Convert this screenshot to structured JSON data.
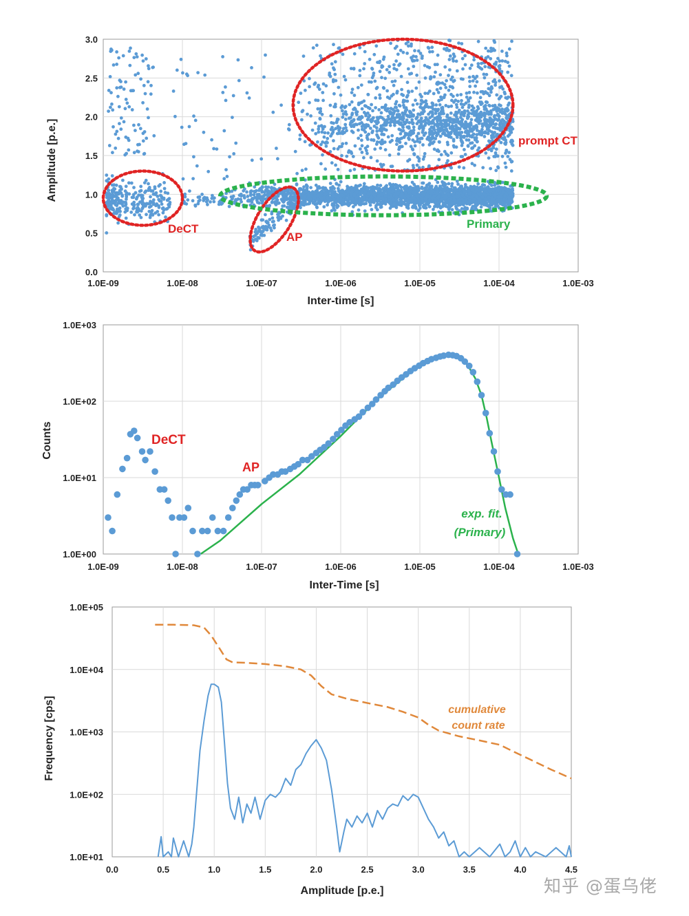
{
  "watermark": "知乎 @蛋乌佬",
  "colors": {
    "points": "#5b9bd5",
    "grid": "#d9d9d9",
    "red_annotation": "#e02424",
    "green": "#2bb24c",
    "orange": "#e0883a",
    "blue_line": "#5b9bd5"
  },
  "chart_data": [
    {
      "id": "scatter",
      "type": "scatter",
      "xlabel": "Inter-time [s]",
      "ylabel": "Amplitude [p.e.]",
      "x_scale": "log",
      "xlim": [
        1e-09,
        0.001
      ],
      "ylim": [
        0,
        3
      ],
      "x_tick_labels": [
        "1.0E-09",
        "1.0E-08",
        "1.0E-07",
        "1.0E-06",
        "1.0E-05",
        "1.0E-04",
        "1.0E-03"
      ],
      "y_tick_labels": [
        "0.0",
        "0.5",
        "1.0",
        "1.5",
        "2.0",
        "2.5",
        "3.0"
      ],
      "grid": true,
      "clusters": [
        {
          "label": "DeCT",
          "x_range": [
            1.1e-09,
            7e-09
          ],
          "y_center": 0.92,
          "y_spread": 0.12,
          "count": 280
        },
        {
          "label": "Primary",
          "x_range": [
            3e-08,
            0.00015
          ],
          "y_center": 0.97,
          "y_spread": 0.07,
          "count": 2600
        },
        {
          "label": "AP",
          "x_range": [
            7e-08,
            3.5e-07
          ],
          "y_center": 0.75,
          "y_spread": 0.2,
          "count": 110
        },
        {
          "label": "prompt CT",
          "x_range": [
            3e-07,
            0.00015
          ],
          "y_center": 1.9,
          "y_spread": 0.15,
          "count": 1500
        }
      ],
      "annotations": [
        {
          "text": "DeCT",
          "color": "red",
          "ellipse": {
            "x_range": [
              1e-09,
              1e-08
            ],
            "y_range": [
              0.6,
              1.3
            ]
          }
        },
        {
          "text": "AP",
          "color": "red",
          "ellipse": {
            "x_range": [
              6e-08,
              3.5e-07
            ],
            "y_range": [
              0.2,
              1.15
            ]
          }
        },
        {
          "text": "prompt CT",
          "color": "red",
          "ellipse": {
            "x_range": [
              2.5e-07,
              0.00015
            ],
            "y_range": [
              1.3,
              3.0
            ]
          }
        },
        {
          "text": "Primary",
          "color": "green",
          "ellipse": {
            "x_range": [
              3e-08,
              0.0004
            ],
            "y_range": [
              0.73,
              1.23
            ]
          }
        }
      ]
    },
    {
      "id": "histogram",
      "type": "scatter",
      "xlabel": "Inter-Time [s]",
      "ylabel": "Counts",
      "x_scale": "log",
      "y_scale": "log",
      "xlim": [
        1e-09,
        0.001
      ],
      "ylim": [
        1,
        1000
      ],
      "x_tick_labels": [
        "1.0E-09",
        "1.0E-08",
        "1.0E-07",
        "1.0E-06",
        "1.0E-05",
        "1.0E-04",
        "1.0E-03"
      ],
      "y_tick_labels": [
        "1.0E+00",
        "1.0E+01",
        "1.0E+02",
        "1.0E+03"
      ],
      "grid": true,
      "points": [
        [
          1.15e-09,
          3
        ],
        [
          1.3e-09,
          2
        ],
        [
          1.5e-09,
          6
        ],
        [
          1.75e-09,
          13
        ],
        [
          2e-09,
          18
        ],
        [
          2.2e-09,
          37
        ],
        [
          2.45e-09,
          41
        ],
        [
          2.7e-09,
          33
        ],
        [
          3.1e-09,
          22
        ],
        [
          3.4e-09,
          17
        ],
        [
          3.9e-09,
          22
        ],
        [
          4.5e-09,
          12
        ],
        [
          5.2e-09,
          7
        ],
        [
          5.9e-09,
          7
        ],
        [
          6.6e-09,
          5
        ],
        [
          7.4e-09,
          3
        ],
        [
          8.2e-09,
          1
        ],
        [
          9.2e-09,
          3
        ],
        [
          1.05e-08,
          3
        ],
        [
          1.18e-08,
          4
        ],
        [
          1.35e-08,
          2
        ],
        [
          1.55e-08,
          1
        ],
        [
          1.78e-08,
          2
        ],
        [
          2.08e-08,
          2
        ],
        [
          2.4e-08,
          3
        ],
        [
          2.8e-08,
          2
        ],
        [
          3.3e-08,
          2
        ],
        [
          3.8e-08,
          3
        ],
        [
          4.3e-08,
          4
        ],
        [
          4.8e-08,
          5
        ],
        [
          5.3e-08,
          6
        ],
        [
          5.9e-08,
          7
        ],
        [
          6.6e-08,
          7
        ],
        [
          7.4e-08,
          8
        ],
        [
          8.2e-08,
          8
        ],
        [
          9e-08,
          8
        ],
        [
          1.1e-07,
          9
        ],
        [
          1.25e-07,
          10
        ],
        [
          1.4e-07,
          11
        ],
        [
          1.6e-07,
          11
        ],
        [
          1.8e-07,
          12
        ],
        [
          2e-07,
          12
        ],
        [
          2.3e-07,
          13
        ],
        [
          2.6e-07,
          14
        ],
        [
          2.9e-07,
          15
        ],
        [
          3.3e-07,
          17
        ],
        [
          3.8e-07,
          17
        ],
        [
          4.3e-07,
          19
        ],
        [
          4.9e-07,
          21
        ],
        [
          5.5e-07,
          23
        ],
        [
          6.2e-07,
          25
        ],
        [
          7e-07,
          28
        ],
        [
          8e-07,
          32
        ],
        [
          9e-07,
          37
        ],
        [
          1.02e-06,
          42
        ],
        [
          1.15e-06,
          48
        ],
        [
          1.3e-06,
          53
        ],
        [
          1.5e-06,
          58
        ],
        [
          1.7e-06,
          63
        ],
        [
          1.9e-06,
          72
        ],
        [
          2.2e-06,
          82
        ],
        [
          2.5e-06,
          92
        ],
        [
          2.8e-06,
          105
        ],
        [
          3.2e-06,
          120
        ],
        [
          3.6e-06,
          135
        ],
        [
          4e-06,
          150
        ],
        [
          4.6e-06,
          165
        ],
        [
          5.2e-06,
          185
        ],
        [
          5.9e-06,
          205
        ],
        [
          6.7e-06,
          225
        ],
        [
          7.6e-06,
          248
        ],
        [
          8.6e-06,
          270
        ],
        [
          9.8e-06,
          292
        ],
        [
          1.1e-05,
          315
        ],
        [
          1.25e-05,
          335
        ],
        [
          1.4e-05,
          355
        ],
        [
          1.6e-05,
          370
        ],
        [
          1.8e-05,
          385
        ],
        [
          2e-05,
          395
        ],
        [
          2.3e-05,
          405
        ],
        [
          2.6e-05,
          400
        ],
        [
          2.9e-05,
          390
        ],
        [
          3.3e-05,
          365
        ],
        [
          3.7e-05,
          330
        ],
        [
          4.2e-05,
          290
        ],
        [
          4.7e-05,
          240
        ],
        [
          5.3e-05,
          180
        ],
        [
          6e-05,
          120
        ],
        [
          6.8e-05,
          70
        ],
        [
          7.6e-05,
          38
        ],
        [
          8.6e-05,
          22
        ],
        [
          9.6e-05,
          12
        ],
        [
          0.000108,
          7
        ],
        [
          0.000122,
          6
        ],
        [
          0.000138,
          6
        ],
        [
          0.00017,
          1
        ]
      ],
      "fit_line": {
        "label_lines": [
          "exp. fit.",
          "(Primary)"
        ],
        "points": [
          [
            1.7e-08,
            1
          ],
          [
            3e-08,
            1.5
          ],
          [
            1e-07,
            4.5
          ],
          [
            3e-07,
            11
          ],
          [
            1e-06,
            35
          ],
          [
            3e-06,
            110
          ],
          [
            1e-05,
            300
          ],
          [
            2e-05,
            400
          ],
          [
            3e-05,
            380
          ],
          [
            4e-05,
            300
          ],
          [
            5e-05,
            200
          ],
          [
            6e-05,
            120
          ],
          [
            7e-05,
            60
          ],
          [
            8e-05,
            30
          ],
          [
            0.0001,
            10
          ],
          [
            0.00012,
            4
          ],
          [
            0.00015,
            1.6
          ],
          [
            0.000175,
            1
          ]
        ]
      },
      "annotations": [
        {
          "text": "DeCT",
          "color": "red",
          "at": [
            4e-09,
            40
          ]
        },
        {
          "text": "AP",
          "color": "red",
          "at": [
            1.1e-07,
            13
          ]
        }
      ]
    },
    {
      "id": "frequency",
      "type": "line",
      "xlabel": "Amplitude [p.e.]",
      "ylabel": "Frequency [cps]",
      "y_scale": "log",
      "xlim": [
        0,
        4.5
      ],
      "ylim": [
        10,
        100000
      ],
      "x_tick_labels": [
        "0.0",
        "0.5",
        "1.0",
        "1.5",
        "2.0",
        "2.5",
        "3.0",
        "3.5",
        "4.0",
        "4.5"
      ],
      "y_tick_labels": [
        "1.0E+01",
        "1.0E+02",
        "1.0E+03",
        "1.0E+04",
        "1.0E+05"
      ],
      "grid": true,
      "series": [
        {
          "name": "cumulative count rate",
          "style": "dashed",
          "color": "orange",
          "points": [
            [
              0.42,
              52000
            ],
            [
              0.6,
              52000
            ],
            [
              0.8,
              51000
            ],
            [
              0.9,
              47000
            ],
            [
              0.97,
              35000
            ],
            [
              1.05,
              22000
            ],
            [
              1.12,
              14500
            ],
            [
              1.18,
              13000
            ],
            [
              1.3,
              12800
            ],
            [
              1.5,
              12200
            ],
            [
              1.7,
              11200
            ],
            [
              1.85,
              10000
            ],
            [
              1.95,
              8000
            ],
            [
              2.05,
              5400
            ],
            [
              2.15,
              4000
            ],
            [
              2.3,
              3400
            ],
            [
              2.5,
              2900
            ],
            [
              2.7,
              2500
            ],
            [
              2.85,
              2100
            ],
            [
              3.0,
              1700
            ],
            [
              3.1,
              1300
            ],
            [
              3.2,
              1050
            ],
            [
              3.4,
              850
            ],
            [
              3.6,
              730
            ],
            [
              3.8,
              620
            ],
            [
              3.95,
              470
            ],
            [
              4.1,
              360
            ],
            [
              4.3,
              250
            ],
            [
              4.5,
              180
            ]
          ]
        },
        {
          "name": "",
          "style": "solid",
          "color": "blue",
          "points": [
            [
              0.45,
              10
            ],
            [
              0.48,
              21
            ],
            [
              0.5,
              10
            ],
            [
              0.55,
              12
            ],
            [
              0.58,
              10
            ],
            [
              0.6,
              20
            ],
            [
              0.65,
              10
            ],
            [
              0.7,
              18
            ],
            [
              0.75,
              10
            ],
            [
              0.78,
              16
            ],
            [
              0.8,
              30
            ],
            [
              0.83,
              120
            ],
            [
              0.86,
              500
            ],
            [
              0.9,
              1500
            ],
            [
              0.94,
              3800
            ],
            [
              0.97,
              5800
            ],
            [
              1.0,
              5800
            ],
            [
              1.04,
              5200
            ],
            [
              1.07,
              3000
            ],
            [
              1.1,
              700
            ],
            [
              1.13,
              150
            ],
            [
              1.16,
              60
            ],
            [
              1.2,
              40
            ],
            [
              1.24,
              90
            ],
            [
              1.28,
              35
            ],
            [
              1.32,
              70
            ],
            [
              1.36,
              50
            ],
            [
              1.4,
              90
            ],
            [
              1.45,
              40
            ],
            [
              1.5,
              80
            ],
            [
              1.55,
              100
            ],
            [
              1.6,
              90
            ],
            [
              1.65,
              110
            ],
            [
              1.7,
              180
            ],
            [
              1.75,
              140
            ],
            [
              1.8,
              250
            ],
            [
              1.85,
              300
            ],
            [
              1.9,
              450
            ],
            [
              1.95,
              600
            ],
            [
              2.0,
              750
            ],
            [
              2.05,
              550
            ],
            [
              2.1,
              350
            ],
            [
              2.15,
              120
            ],
            [
              2.2,
              30
            ],
            [
              2.23,
              12
            ],
            [
              2.27,
              25
            ],
            [
              2.3,
              40
            ],
            [
              2.35,
              30
            ],
            [
              2.4,
              45
            ],
            [
              2.45,
              35
            ],
            [
              2.5,
              50
            ],
            [
              2.55,
              30
            ],
            [
              2.6,
              55
            ],
            [
              2.65,
              40
            ],
            [
              2.7,
              60
            ],
            [
              2.75,
              70
            ],
            [
              2.8,
              65
            ],
            [
              2.85,
              95
            ],
            [
              2.9,
              80
            ],
            [
              2.95,
              100
            ],
            [
              3.0,
              90
            ],
            [
              3.05,
              60
            ],
            [
              3.1,
              40
            ],
            [
              3.15,
              30
            ],
            [
              3.2,
              20
            ],
            [
              3.25,
              25
            ],
            [
              3.3,
              15
            ],
            [
              3.35,
              18
            ],
            [
              3.4,
              10
            ],
            [
              3.45,
              12
            ],
            [
              3.5,
              10
            ],
            [
              3.6,
              14
            ],
            [
              3.7,
              10
            ],
            [
              3.8,
              16
            ],
            [
              3.85,
              10
            ],
            [
              3.9,
              12
            ],
            [
              3.95,
              18
            ],
            [
              4.0,
              10
            ],
            [
              4.05,
              14
            ],
            [
              4.1,
              10
            ],
            [
              4.15,
              12
            ],
            [
              4.25,
              10
            ],
            [
              4.35,
              14
            ],
            [
              4.45,
              10
            ],
            [
              4.48,
              15
            ],
            [
              4.5,
              10
            ]
          ]
        }
      ],
      "annotations": [
        {
          "text_lines": [
            "cumulative",
            "count rate"
          ],
          "color": "orange"
        }
      ]
    }
  ]
}
